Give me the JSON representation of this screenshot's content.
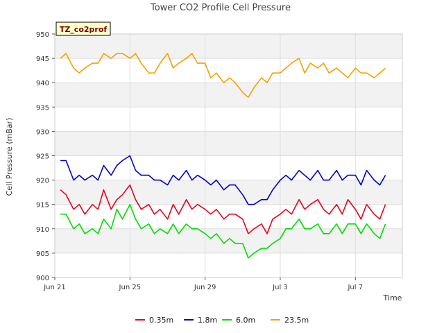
{
  "chart_data": {
    "type": "line",
    "title": "Tower CO2 Profile Cell Pressure",
    "xlabel": "Time",
    "ylabel": "Cell Pressure (mBar)",
    "badge": "TZ_co2prof",
    "x_unit": "day",
    "xlim": [
      0,
      18.5
    ],
    "ylim": [
      900,
      950
    ],
    "x_ticks": [
      {
        "x": 0,
        "label": "Jun 21"
      },
      {
        "x": 4,
        "label": "Jun 25"
      },
      {
        "x": 8,
        "label": "Jun 29"
      },
      {
        "x": 12,
        "label": "Jul 3"
      },
      {
        "x": 16,
        "label": "Jul 7"
      }
    ],
    "y_ticks": [
      900,
      905,
      910,
      915,
      920,
      925,
      930,
      935,
      940,
      945,
      950
    ],
    "grid": true,
    "legend_position": "bottom",
    "x": [
      0.3,
      0.6,
      1.0,
      1.3,
      1.6,
      2.0,
      2.3,
      2.6,
      3.0,
      3.3,
      3.6,
      4.0,
      4.3,
      4.6,
      5.0,
      5.3,
      5.6,
      6.0,
      6.3,
      6.6,
      7.0,
      7.3,
      7.6,
      8.0,
      8.3,
      8.6,
      9.0,
      9.3,
      9.6,
      10.0,
      10.3,
      10.6,
      11.0,
      11.3,
      11.6,
      12.0,
      12.3,
      12.6,
      13.0,
      13.3,
      13.6,
      14.0,
      14.3,
      14.6,
      15.0,
      15.3,
      15.6,
      16.0,
      16.3,
      16.6,
      17.0,
      17.3,
      17.6
    ],
    "series": [
      {
        "name": "0.35m",
        "color": "#e8001c",
        "values": [
          918,
          917,
          914,
          915,
          913,
          915,
          914,
          918,
          914,
          916,
          917,
          919,
          916,
          914,
          915,
          913,
          914,
          912,
          915,
          913,
          916,
          914,
          915,
          914,
          913,
          914,
          912,
          913,
          913,
          912,
          909,
          910,
          911,
          909,
          912,
          913,
          914,
          913,
          916,
          914,
          915,
          916,
          914,
          913,
          915,
          913,
          916,
          914,
          912,
          915,
          913,
          912,
          915
        ]
      },
      {
        "name": "1.8m",
        "color": "#0000cc",
        "values": [
          924,
          924,
          920,
          921,
          920,
          921,
          920,
          923,
          921,
          923,
          924,
          925,
          922,
          921,
          921,
          920,
          920,
          919,
          921,
          920,
          922,
          920,
          921,
          920,
          919,
          920,
          918,
          919,
          919,
          917,
          915,
          915,
          916,
          916,
          918,
          920,
          921,
          920,
          922,
          921,
          920,
          922,
          920,
          920,
          922,
          920,
          921,
          921,
          919,
          922,
          920,
          919,
          921
        ]
      },
      {
        "name": "6.0m",
        "color": "#00dd00",
        "values": [
          913,
          913,
          910,
          911,
          909,
          910,
          909,
          912,
          910,
          914,
          912,
          915,
          912,
          910,
          911,
          909,
          910,
          909,
          911,
          909,
          911,
          910,
          910,
          909,
          908,
          909,
          907,
          908,
          907,
          907,
          904,
          905,
          906,
          906,
          907,
          908,
          910,
          910,
          912,
          910,
          910,
          911,
          909,
          909,
          911,
          909,
          911,
          911,
          909,
          911,
          909,
          908,
          911
        ]
      },
      {
        "name": "23.5m",
        "color": "#f5a000",
        "values": [
          945,
          946,
          943,
          942,
          943,
          944,
          944,
          946,
          945,
          946,
          946,
          945,
          946,
          944,
          942,
          942,
          944,
          946,
          943,
          944,
          945,
          946,
          944,
          944,
          941,
          942,
          940,
          941,
          940,
          938,
          937,
          939,
          941,
          940,
          942,
          942,
          943,
          944,
          945,
          942,
          944,
          943,
          944,
          942,
          943,
          942,
          941,
          943,
          942,
          942,
          941,
          942,
          943
        ]
      }
    ]
  }
}
